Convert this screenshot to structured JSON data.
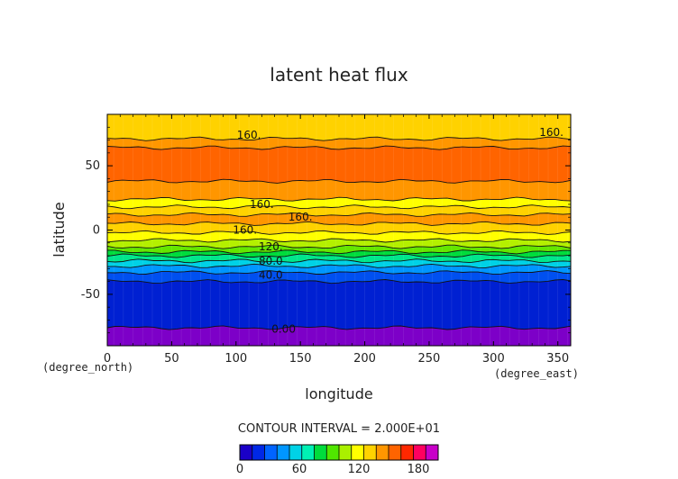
{
  "chart_data": {
    "type": "heatmap",
    "title": "latent heat flux",
    "xlabel": "longitude",
    "ylabel": "latitude",
    "x_unit": "(degree_east)",
    "y_unit": "(degree_north)",
    "xlim": [
      0,
      360
    ],
    "ylim": [
      -90,
      90
    ],
    "xticks": [
      0,
      50,
      100,
      150,
      200,
      250,
      300,
      350
    ],
    "yticks": [
      -50,
      0,
      50
    ],
    "contour_interval_text": "CONTOUR INTERVAL = 2.000E+01",
    "colorbar": {
      "min": 0,
      "max": 200,
      "ticks": [
        0,
        60,
        120,
        180
      ],
      "colors": [
        "#1a00c8",
        "#0028e6",
        "#0064ff",
        "#0096ff",
        "#00d2e6",
        "#00f0b4",
        "#00dc3c",
        "#50e600",
        "#aaf000",
        "#ffff00",
        "#ffd200",
        "#ff9600",
        "#ff6400",
        "#ff2800",
        "#ff0060",
        "#c800c8"
      ]
    },
    "bands": [
      {
        "lat_min": -90,
        "lat_max": -76,
        "value": 0,
        "color": "#7d00c8"
      },
      {
        "lat_min": -76,
        "lat_max": -40,
        "value": 10,
        "color": "#0020d2"
      },
      {
        "lat_min": -40,
        "lat_max": -33,
        "value": 30,
        "color": "#0050f0"
      },
      {
        "lat_min": -33,
        "lat_max": -28,
        "value": 45,
        "color": "#0096ff"
      },
      {
        "lat_min": -28,
        "lat_max": -24,
        "value": 60,
        "color": "#00d2e6"
      },
      {
        "lat_min": -24,
        "lat_max": -20,
        "value": 75,
        "color": "#00e68c"
      },
      {
        "lat_min": -20,
        "lat_max": -17,
        "value": 90,
        "color": "#00dc3c"
      },
      {
        "lat_min": -17,
        "lat_max": -13,
        "value": 105,
        "color": "#64e600"
      },
      {
        "lat_min": -13,
        "lat_max": -8,
        "value": 120,
        "color": "#b4f000"
      },
      {
        "lat_min": -8,
        "lat_max": -2,
        "value": 140,
        "color": "#ffff00"
      },
      {
        "lat_min": -2,
        "lat_max": 5,
        "value": 155,
        "color": "#ffd200"
      },
      {
        "lat_min": 5,
        "lat_max": 12,
        "value": 170,
        "color": "#ff9600"
      },
      {
        "lat_min": 12,
        "lat_max": 18,
        "value": 155,
        "color": "#ffd200"
      },
      {
        "lat_min": 18,
        "lat_max": 24,
        "value": 140,
        "color": "#ffff00"
      },
      {
        "lat_min": 24,
        "lat_max": 38,
        "value": 170,
        "color": "#ff9600"
      },
      {
        "lat_min": 38,
        "lat_max": 64,
        "value": 185,
        "color": "#ff6400"
      },
      {
        "lat_min": 64,
        "lat_max": 71,
        "value": 170,
        "color": "#ff9600"
      },
      {
        "lat_min": 71,
        "lat_max": 90,
        "value": 150,
        "color": "#ffd200"
      }
    ],
    "contour_lines_lat": [
      -76,
      -40,
      -28,
      -20,
      -13,
      -8,
      -2,
      5,
      12,
      18,
      24,
      38,
      64,
      71
    ],
    "contour_labels": [
      {
        "text": "160.",
        "lon": 110,
        "lat": 74
      },
      {
        "text": "160.",
        "lon": 345,
        "lat": 76
      },
      {
        "text": "160.",
        "lon": 120,
        "lat": 20
      },
      {
        "text": "160.",
        "lon": 150,
        "lat": 10
      },
      {
        "text": "160.",
        "lon": 107,
        "lat": 0
      },
      {
        "text": "120.",
        "lon": 127,
        "lat": -13
      },
      {
        "text": "80.0",
        "lon": 127,
        "lat": -24
      },
      {
        "text": "40.0",
        "lon": 127,
        "lat": -35
      },
      {
        "text": "0.00",
        "lon": 137,
        "lat": -77
      }
    ]
  }
}
